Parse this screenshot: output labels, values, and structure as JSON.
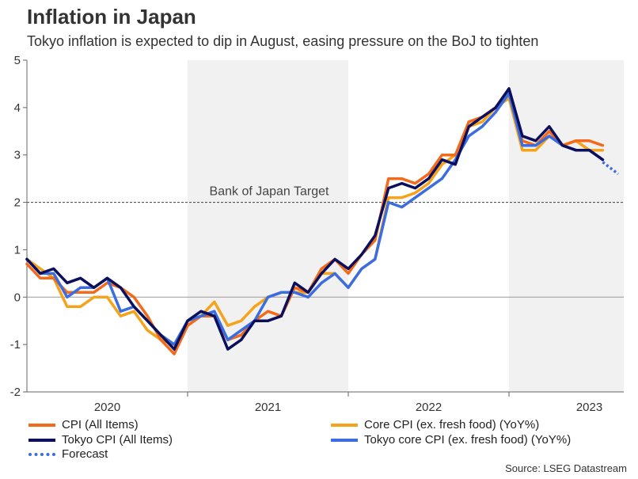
{
  "title": "Inflation in Japan",
  "subtitle": "Tokyo inflation is expected to dip in August, easing pressure on the BoJ to tighten",
  "source": "Source: LSEG Datastream",
  "chart_data": {
    "type": "line",
    "ylim": [
      -2,
      5
    ],
    "yticks": [
      -2,
      -1,
      0,
      1,
      2,
      3,
      4,
      5
    ],
    "x_start": "2020-01",
    "year_labels": [
      "2020",
      "2021",
      "2022",
      "2023"
    ],
    "shaded_years": [
      "2021",
      "2023"
    ],
    "reference_line": {
      "value": 2,
      "label": "Bank of Japan Target"
    },
    "colors": {
      "cpi": "#f26b1d",
      "core": "#f5a31a",
      "tokyo": "#0b0f5c",
      "tokyo_core": "#3b6de0",
      "forecast": "#3b6de0"
    },
    "series": [
      {
        "key": "cpi",
        "name": "CPI (All Items)",
        "values": [
          0.7,
          0.4,
          0.4,
          0.1,
          0.1,
          0.1,
          0.3,
          0.2,
          0.0,
          -0.4,
          -0.9,
          -1.2,
          -0.6,
          -0.4,
          -0.4,
          -0.9,
          -0.8,
          -0.5,
          -0.3,
          -0.4,
          0.2,
          0.1,
          0.6,
          0.8,
          0.5,
          0.9,
          1.2,
          2.5,
          2.5,
          2.4,
          2.6,
          3.0,
          3.0,
          3.7,
          3.8,
          4.0,
          4.3,
          3.3,
          3.2,
          3.5,
          3.2,
          3.3,
          3.3,
          3.2
        ]
      },
      {
        "key": "core",
        "name": "Core CPI (ex. fresh food) (YoY%)",
        "values": [
          0.8,
          0.6,
          0.4,
          -0.2,
          -0.2,
          0.0,
          0.0,
          -0.4,
          -0.3,
          -0.7,
          -0.9,
          -1.0,
          -0.6,
          -0.4,
          -0.1,
          -0.6,
          -0.5,
          -0.2,
          0.0,
          0.1,
          0.1,
          0.1,
          0.5,
          0.5,
          0.2,
          0.6,
          0.8,
          2.1,
          2.1,
          2.2,
          2.4,
          2.8,
          3.0,
          3.6,
          3.7,
          4.0,
          4.2,
          3.1,
          3.1,
          3.4,
          3.2,
          3.3,
          3.1,
          3.1
        ]
      },
      {
        "key": "tokyo",
        "name": "Tokyo CPI (All Items)",
        "values": [
          0.8,
          0.5,
          0.6,
          0.3,
          0.4,
          0.2,
          0.4,
          0.2,
          -0.2,
          -0.5,
          -0.8,
          -1.1,
          -0.5,
          -0.3,
          -0.4,
          -1.1,
          -0.9,
          -0.5,
          -0.5,
          -0.4,
          0.3,
          0.1,
          0.5,
          0.8,
          0.6,
          0.9,
          1.3,
          2.3,
          2.4,
          2.3,
          2.5,
          2.9,
          2.8,
          3.6,
          3.8,
          4.0,
          4.4,
          3.4,
          3.3,
          3.6,
          3.2,
          3.1,
          3.1,
          2.9
        ]
      },
      {
        "key": "tokyo_core",
        "name": "Tokyo core CPI (ex. fresh food) (YoY%)",
        "values": [
          0.8,
          0.5,
          0.5,
          0.0,
          0.2,
          0.2,
          0.4,
          -0.3,
          -0.2,
          -0.5,
          -0.8,
          -1.0,
          -0.5,
          -0.4,
          -0.3,
          -0.9,
          -0.7,
          -0.5,
          -0.0,
          0.1,
          0.1,
          0.0,
          0.3,
          0.5,
          0.2,
          0.6,
          0.8,
          2.0,
          1.9,
          2.1,
          2.3,
          2.5,
          2.9,
          3.4,
          3.6,
          3.9,
          4.3,
          3.2,
          3.2,
          3.4,
          3.2,
          3.1,
          3.1,
          2.9
        ]
      },
      {
        "key": "forecast",
        "name": "Forecast",
        "values": [
          2.85,
          2.6
        ],
        "start_index": 43
      }
    ]
  },
  "legend": [
    {
      "key": "cpi",
      "label": "CPI (All Items)"
    },
    {
      "key": "core",
      "label": "Core CPI (ex. fresh food) (YoY%)"
    },
    {
      "key": "tokyo",
      "label": "Tokyo CPI (All Items)"
    },
    {
      "key": "tokyo_core",
      "label": "Tokyo core CPI (ex. fresh food) (YoY%)"
    },
    {
      "key": "forecast",
      "label": "Forecast"
    }
  ]
}
